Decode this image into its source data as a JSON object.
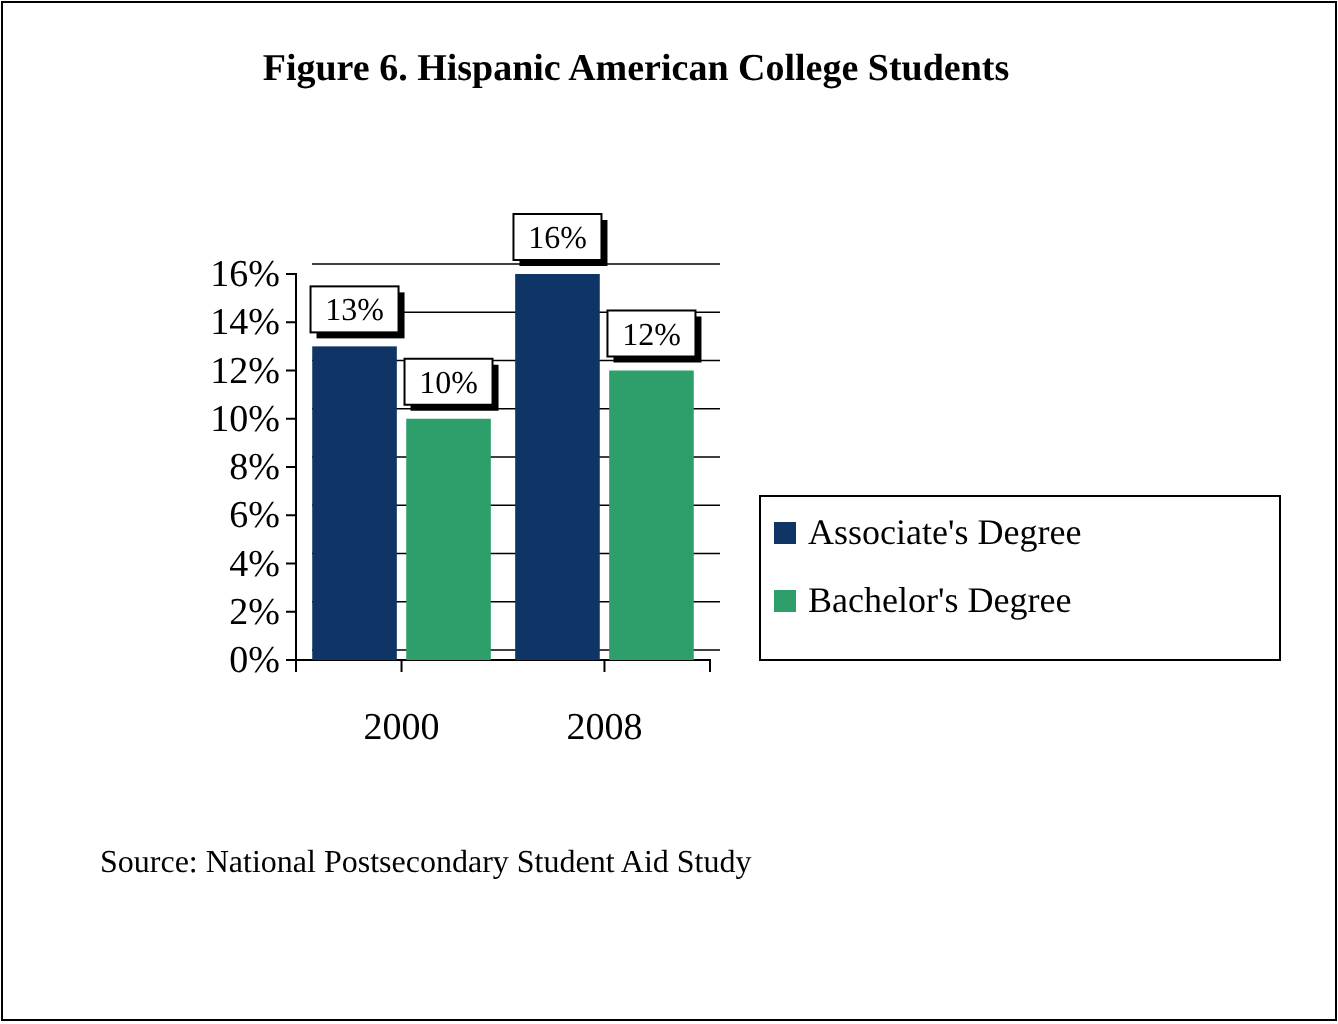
{
  "chart_data": {
    "type": "bar",
    "title": "Figure 6. Hispanic American College Students",
    "categories": [
      "2000",
      "2008"
    ],
    "series": [
      {
        "name": "Associate's Degree",
        "color": "#0f3466",
        "values": [
          13,
          16
        ],
        "value_labels": [
          "13%",
          "16%"
        ]
      },
      {
        "name": "Bachelor's Degree",
        "color": "#2e9e6a",
        "values": [
          10,
          12
        ],
        "value_labels": [
          "10%",
          "12%"
        ]
      }
    ],
    "ylim": [
      0,
      16
    ],
    "yticks": [
      {
        "value": 0,
        "label": "0%"
      },
      {
        "value": 2,
        "label": "2%"
      },
      {
        "value": 4,
        "label": "4%"
      },
      {
        "value": 6,
        "label": "6%"
      },
      {
        "value": 8,
        "label": "8%"
      },
      {
        "value": 10,
        "label": "10%"
      },
      {
        "value": 12,
        "label": "12%"
      },
      {
        "value": 14,
        "label": "14%"
      },
      {
        "value": 16,
        "label": "16%"
      }
    ],
    "grid": "y",
    "legend": "right",
    "annotations": [
      "Source: National Postsecondary Student Aid Study"
    ]
  }
}
